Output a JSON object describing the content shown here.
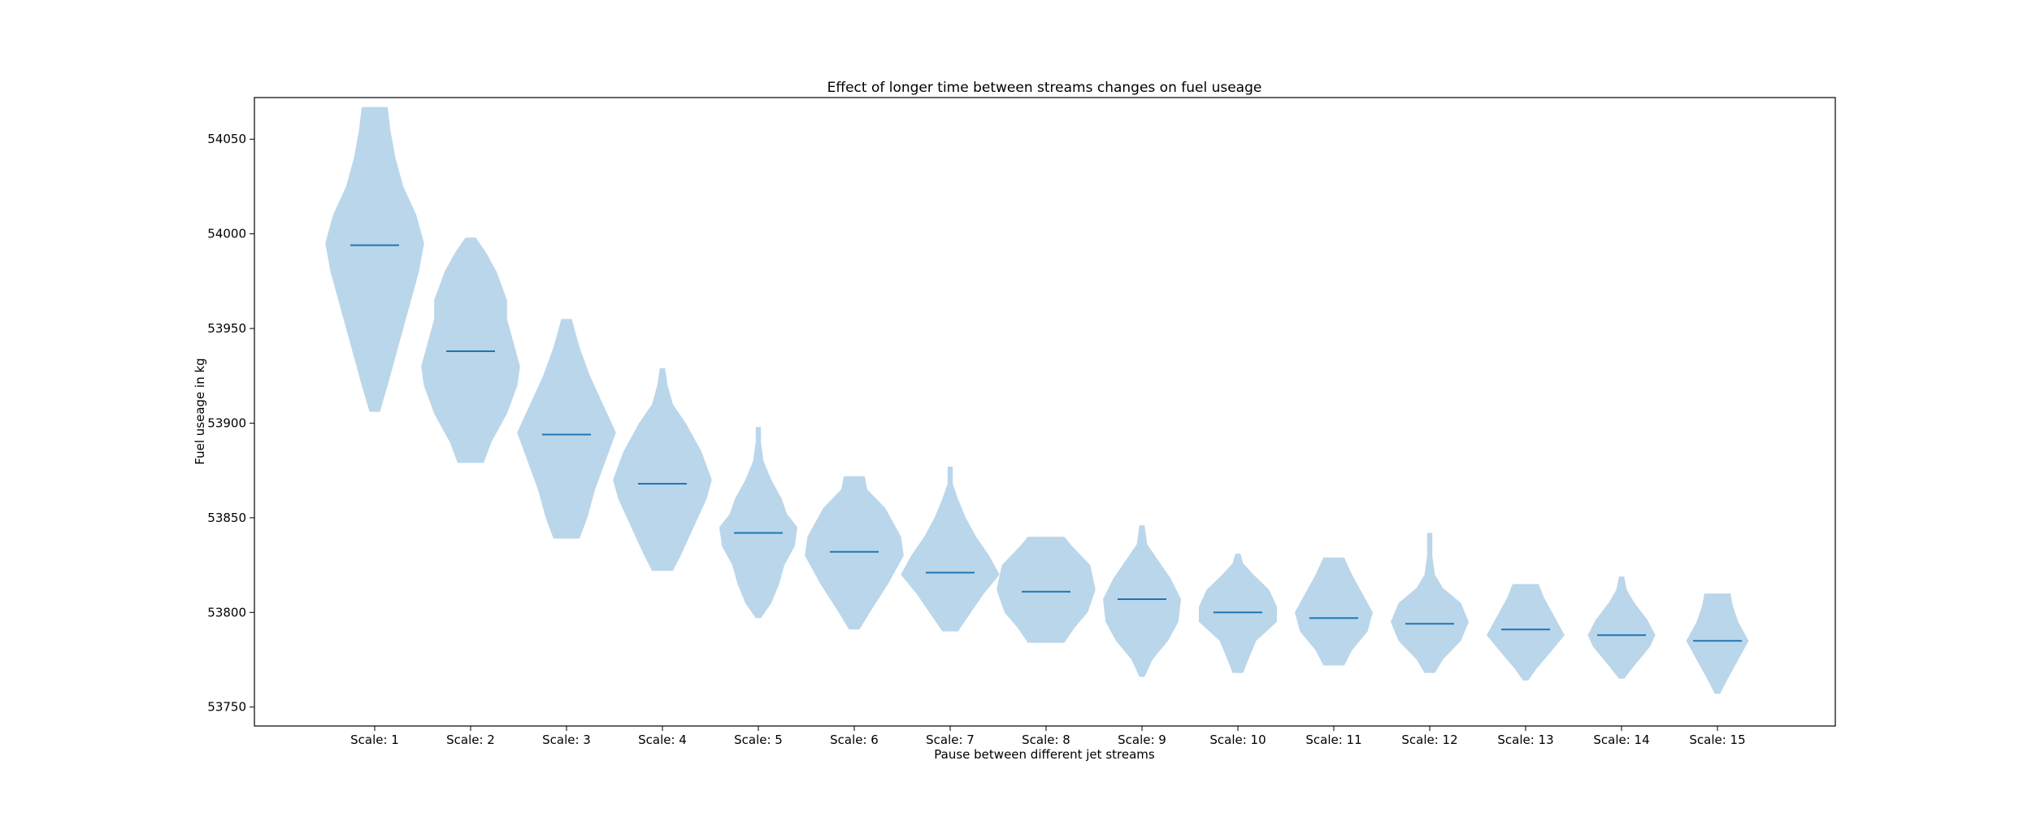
{
  "chart_data": {
    "type": "violin",
    "title": "Effect of longer time between streams changes on fuel useage",
    "xlabel": "Pause between different jet streams",
    "ylabel": "Fuel useage in kg",
    "ylim": [
      53740,
      54072
    ],
    "yticks": [
      53750,
      53800,
      53850,
      53900,
      53950,
      54000,
      54050
    ],
    "grid": false,
    "legend": "none",
    "colors": {
      "body": "#bad6ea",
      "median": "#1f77b4",
      "frame": "#000000"
    },
    "categories": [
      "Scale: 1",
      "Scale: 2",
      "Scale: 3",
      "Scale: 4",
      "Scale: 5",
      "Scale: 6",
      "Scale: 7",
      "Scale: 8",
      "Scale: 9",
      "Scale: 10",
      "Scale: 11",
      "Scale: 12",
      "Scale: 13",
      "Scale: 14",
      "Scale: 15"
    ],
    "violins": [
      {
        "min": 53906,
        "max": 54067,
        "median": 53994,
        "profile": [
          [
            53906,
            0.02
          ],
          [
            53920,
            0.05
          ],
          [
            53940,
            0.09
          ],
          [
            53960,
            0.13
          ],
          [
            53980,
            0.17
          ],
          [
            53995,
            0.19
          ],
          [
            54010,
            0.16
          ],
          [
            54025,
            0.11
          ],
          [
            54040,
            0.08
          ],
          [
            54055,
            0.06
          ],
          [
            54067,
            0.05
          ]
        ]
      },
      {
        "min": 53879,
        "max": 53998,
        "median": 53938,
        "profile": [
          [
            53879,
            0.05
          ],
          [
            53890,
            0.08
          ],
          [
            53905,
            0.14
          ],
          [
            53920,
            0.18
          ],
          [
            53930,
            0.19
          ],
          [
            53940,
            0.17
          ],
          [
            53955,
            0.14
          ],
          [
            53965,
            0.14
          ],
          [
            53980,
            0.1
          ],
          [
            53990,
            0.06
          ],
          [
            53998,
            0.02
          ]
        ]
      },
      {
        "min": 53839,
        "max": 53955,
        "median": 53894,
        "profile": [
          [
            53839,
            0.05
          ],
          [
            53850,
            0.08
          ],
          [
            53865,
            0.11
          ],
          [
            53880,
            0.15
          ],
          [
            53895,
            0.19
          ],
          [
            53910,
            0.14
          ],
          [
            53925,
            0.09
          ],
          [
            53940,
            0.05
          ],
          [
            53955,
            0.02
          ]
        ]
      },
      {
        "min": 53822,
        "max": 53929,
        "median": 53868,
        "profile": [
          [
            53822,
            0.04
          ],
          [
            53830,
            0.07
          ],
          [
            53845,
            0.12
          ],
          [
            53860,
            0.17
          ],
          [
            53870,
            0.19
          ],
          [
            53885,
            0.15
          ],
          [
            53900,
            0.09
          ],
          [
            53910,
            0.04
          ],
          [
            53920,
            0.02
          ],
          [
            53929,
            0.01
          ]
        ]
      },
      {
        "min": 53797,
        "max": 53898,
        "median": 53842,
        "profile": [
          [
            53797,
            0.01
          ],
          [
            53805,
            0.05
          ],
          [
            53815,
            0.08
          ],
          [
            53825,
            0.1
          ],
          [
            53835,
            0.14
          ],
          [
            53845,
            0.15
          ],
          [
            53852,
            0.11
          ],
          [
            53860,
            0.09
          ],
          [
            53870,
            0.05
          ],
          [
            53880,
            0.02
          ],
          [
            53890,
            0.01
          ],
          [
            53898,
            0.01
          ]
        ]
      },
      {
        "min": 53791,
        "max": 53872,
        "median": 53832,
        "profile": [
          [
            53791,
            0.02
          ],
          [
            53800,
            0.06
          ],
          [
            53815,
            0.13
          ],
          [
            53830,
            0.19
          ],
          [
            53840,
            0.18
          ],
          [
            53855,
            0.12
          ],
          [
            53865,
            0.05
          ],
          [
            53872,
            0.04
          ]
        ]
      },
      {
        "min": 53790,
        "max": 53877,
        "median": 53821,
        "profile": [
          [
            53790,
            0.03
          ],
          [
            53800,
            0.08
          ],
          [
            53810,
            0.13
          ],
          [
            53820,
            0.19
          ],
          [
            53830,
            0.15
          ],
          [
            53840,
            0.1
          ],
          [
            53850,
            0.06
          ],
          [
            53860,
            0.03
          ],
          [
            53868,
            0.01
          ],
          [
            53877,
            0.01
          ]
        ]
      },
      {
        "min": 53784,
        "max": 53840,
        "median": 53811,
        "profile": [
          [
            53784,
            0.07
          ],
          [
            53792,
            0.11
          ],
          [
            53800,
            0.16
          ],
          [
            53812,
            0.19
          ],
          [
            53825,
            0.17
          ],
          [
            53835,
            0.1
          ],
          [
            53840,
            0.07
          ]
        ]
      },
      {
        "min": 53766,
        "max": 53846,
        "median": 53807,
        "profile": [
          [
            53766,
            0.01
          ],
          [
            53775,
            0.04
          ],
          [
            53785,
            0.1
          ],
          [
            53795,
            0.14
          ],
          [
            53807,
            0.15
          ],
          [
            53818,
            0.11
          ],
          [
            53828,
            0.06
          ],
          [
            53836,
            0.02
          ],
          [
            53846,
            0.01
          ]
        ]
      },
      {
        "min": 53768,
        "max": 53831,
        "median": 53800,
        "profile": [
          [
            53768,
            0.02
          ],
          [
            53775,
            0.04
          ],
          [
            53785,
            0.07
          ],
          [
            53795,
            0.15
          ],
          [
            53803,
            0.15
          ],
          [
            53812,
            0.12
          ],
          [
            53820,
            0.06
          ],
          [
            53826,
            0.02
          ],
          [
            53831,
            0.01
          ]
        ]
      },
      {
        "min": 53772,
        "max": 53829,
        "median": 53797,
        "profile": [
          [
            53772,
            0.04
          ],
          [
            53780,
            0.07
          ],
          [
            53790,
            0.13
          ],
          [
            53800,
            0.15
          ],
          [
            53810,
            0.11
          ],
          [
            53820,
            0.07
          ],
          [
            53829,
            0.04
          ]
        ]
      },
      {
        "min": 53768,
        "max": 53842,
        "median": 53794,
        "profile": [
          [
            53768,
            0.02
          ],
          [
            53775,
            0.05
          ],
          [
            53785,
            0.12
          ],
          [
            53795,
            0.15
          ],
          [
            53805,
            0.12
          ],
          [
            53813,
            0.05
          ],
          [
            53820,
            0.02
          ],
          [
            53830,
            0.01
          ],
          [
            53842,
            0.01
          ]
        ]
      },
      {
        "min": 53764,
        "max": 53815,
        "median": 53791,
        "profile": [
          [
            53764,
            0.01
          ],
          [
            53770,
            0.04
          ],
          [
            53778,
            0.09
          ],
          [
            53788,
            0.15
          ],
          [
            53798,
            0.11
          ],
          [
            53808,
            0.07
          ],
          [
            53815,
            0.05
          ]
        ]
      },
      {
        "min": 53765,
        "max": 53819,
        "median": 53788,
        "profile": [
          [
            53765,
            0.01
          ],
          [
            53772,
            0.05
          ],
          [
            53782,
            0.11
          ],
          [
            53788,
            0.13
          ],
          [
            53796,
            0.1
          ],
          [
            53805,
            0.05
          ],
          [
            53812,
            0.02
          ],
          [
            53819,
            0.01
          ]
        ]
      },
      {
        "min": 53757,
        "max": 53810,
        "median": 53785,
        "profile": [
          [
            53757,
            0.01
          ],
          [
            53765,
            0.04
          ],
          [
            53775,
            0.08
          ],
          [
            53785,
            0.12
          ],
          [
            53795,
            0.08
          ],
          [
            53803,
            0.06
          ],
          [
            53810,
            0.05
          ]
        ]
      }
    ]
  }
}
